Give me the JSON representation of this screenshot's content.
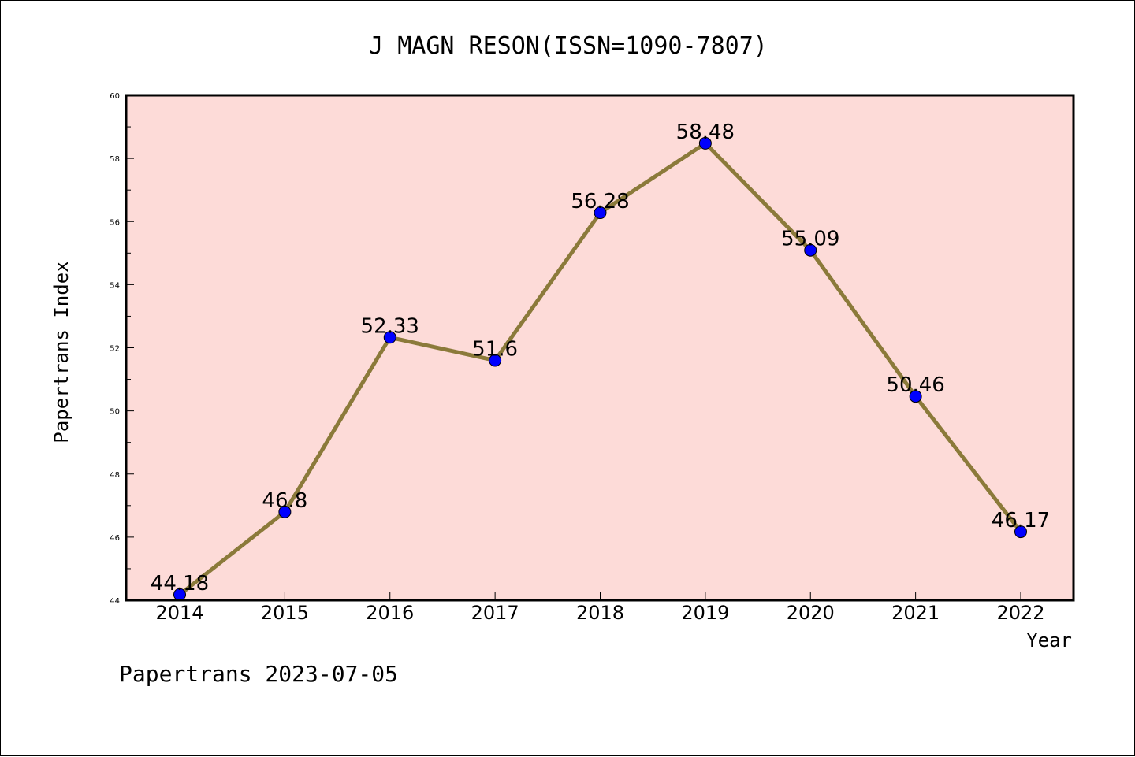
{
  "chart_data": {
    "type": "line",
    "title": "J MAGN RESON(ISSN=1090-7807)",
    "xlabel": "Year",
    "ylabel": "Papertrans Index",
    "categories": [
      "2014",
      "2015",
      "2016",
      "2017",
      "2018",
      "2019",
      "2020",
      "2021",
      "2022"
    ],
    "values": [
      44.18,
      46.8,
      52.33,
      51.6,
      56.28,
      58.48,
      55.09,
      50.46,
      46.17
    ],
    "data_labels": [
      "44.18",
      "46.8",
      "52.33",
      "51.6",
      "56.28",
      "58.48",
      "55.09",
      "50.46",
      "46.17"
    ],
    "ylim": [
      44,
      60
    ],
    "yticks": [
      44,
      46,
      48,
      50,
      52,
      54,
      56,
      58,
      60
    ],
    "grid": false,
    "legend": "none",
    "colors": {
      "plot_background": "#fddbd8",
      "line": "#8b7a3a",
      "marker": "#0000ff"
    }
  },
  "footer": "Papertrans 2023-07-05"
}
